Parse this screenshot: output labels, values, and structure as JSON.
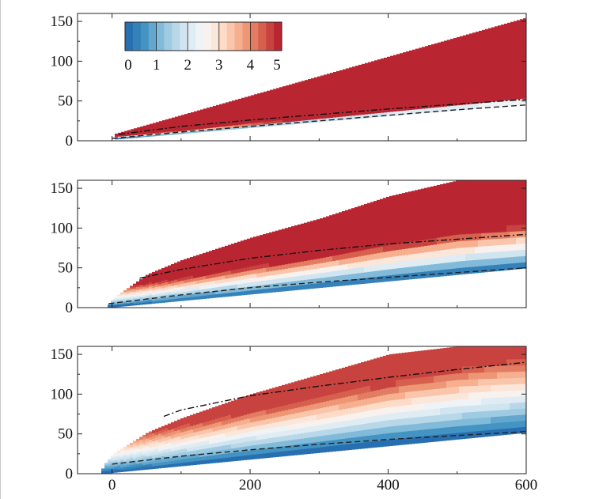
{
  "chart_data": [
    {
      "type": "heatmap",
      "title": "",
      "xlabel": "",
      "ylabel": "",
      "xlim": [
        -50,
        600
      ],
      "ylim": [
        0,
        160
      ],
      "y_ticks": [
        "0",
        "50",
        "100",
        "150"
      ],
      "x_ticks": [],
      "field": {
        "x0": 0,
        "intensity": 5.0,
        "saturation_y": 8
      },
      "lower_boundary": {
        "x": [
          0,
          600
        ],
        "y": [
          2,
          46
        ]
      },
      "upper_boundary": {
        "x": [
          0,
          600
        ],
        "y": [
          8,
          155
        ]
      },
      "dash_line": {
        "x": [
          0,
          100,
          200,
          300,
          400,
          500,
          600
        ],
        "y": [
          3,
          11,
          18,
          25,
          32,
          39,
          45
        ]
      },
      "dashdot_line": {
        "x": [
          10,
          100,
          200,
          300,
          400,
          500,
          600
        ],
        "y": [
          8,
          18,
          26,
          33,
          40,
          46,
          52
        ]
      }
    },
    {
      "type": "heatmap",
      "title": "",
      "xlabel": "",
      "ylabel": "",
      "xlim": [
        -50,
        600
      ],
      "ylim": [
        0,
        160
      ],
      "y_ticks": [
        "0",
        "50",
        "100",
        "150"
      ],
      "x_ticks": [],
      "field": {
        "x0": -10,
        "intensity": 5.0,
        "saturation_y": 55
      },
      "lower_boundary": {
        "x": [
          -10,
          600
        ],
        "y": [
          0,
          50
        ]
      },
      "upper_boundary": {
        "x": [
          -10,
          0,
          50,
          100,
          200,
          300,
          400,
          500,
          600
        ],
        "y": [
          0,
          12,
          42,
          60,
          88,
          112,
          140,
          160,
          160
        ]
      },
      "dash_line": {
        "x": [
          -5,
          100,
          200,
          300,
          400,
          500,
          600
        ],
        "y": [
          5,
          16,
          25,
          32,
          38,
          44,
          50
        ]
      },
      "dashdot_line": {
        "x": [
          40,
          100,
          200,
          300,
          400,
          500,
          600
        ],
        "y": [
          37,
          48,
          62,
          72,
          80,
          86,
          92
        ]
      }
    },
    {
      "type": "heatmap",
      "title": "",
      "xlabel": "",
      "ylabel": "",
      "xlim": [
        -50,
        600
      ],
      "ylim": [
        0,
        160
      ],
      "y_ticks": [
        "0",
        "50",
        "100",
        "150"
      ],
      "x_ticks": [
        "0",
        "200",
        "400",
        "600"
      ],
      "field": {
        "x0": -20,
        "intensity": 4.7,
        "saturation_y": 95
      },
      "lower_boundary": {
        "x": [
          -20,
          600
        ],
        "y": [
          0,
          52
        ]
      },
      "upper_boundary": {
        "x": [
          -20,
          -10,
          0,
          50,
          100,
          200,
          300,
          400,
          500,
          600
        ],
        "y": [
          0,
          15,
          25,
          52,
          70,
          100,
          125,
          150,
          160,
          160
        ]
      },
      "dash_line": {
        "x": [
          0,
          100,
          200,
          300,
          400,
          500,
          600
        ],
        "y": [
          12,
          22,
          30,
          37,
          43,
          48,
          53
        ]
      },
      "dashdot_line": {
        "x": [
          75,
          100,
          200,
          300,
          400,
          500,
          600
        ],
        "y": [
          72,
          80,
          98,
          110,
          121,
          131,
          140
        ]
      }
    }
  ],
  "colorbar": {
    "ticks": [
      "0",
      "1",
      "2",
      "3",
      "4",
      "5"
    ],
    "range": [
      0,
      5
    ],
    "colors": [
      "#2166ac",
      "#4393c3",
      "#92c5de",
      "#d1e5f0",
      "#f7f7f7",
      "#fddbc7",
      "#f4a582",
      "#d6604d",
      "#b2182b"
    ]
  }
}
